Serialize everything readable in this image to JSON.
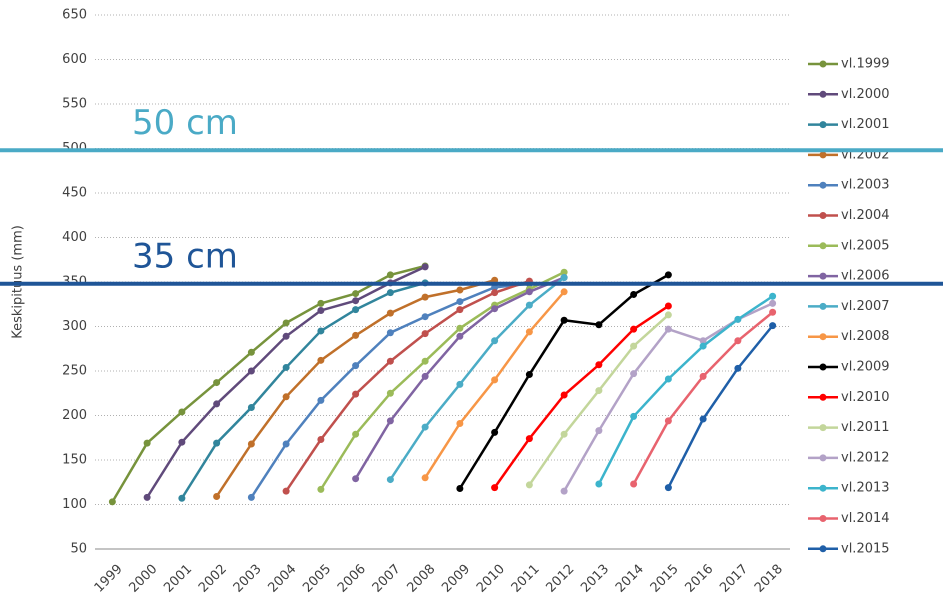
{
  "chart_data": {
    "type": "line",
    "y_label": "Keskipituus (mm)",
    "categories": [
      "1999",
      "2000",
      "2001",
      "2002",
      "2003",
      "2004",
      "2005",
      "2006",
      "2007",
      "2008",
      "2009",
      "2010",
      "2011",
      "2012",
      "2013",
      "2014",
      "2015",
      "2016",
      "2017",
      "2018"
    ],
    "ylim": [
      50,
      650
    ],
    "yticks": [
      50,
      100,
      150,
      200,
      250,
      300,
      350,
      400,
      450,
      500,
      550,
      600,
      650
    ],
    "grid": true,
    "legend": "right",
    "reference_lines": [
      {
        "label": "50 cm",
        "value": 498,
        "color": "#4aaac6"
      },
      {
        "label": "35 cm",
        "value": 348,
        "color": "#1f5597"
      }
    ],
    "series": [
      {
        "name": "vl.1999",
        "color": "#77933c",
        "values": [
          103,
          169,
          204,
          237,
          271,
          304,
          326,
          337,
          358,
          368,
          null,
          null,
          null,
          null,
          null,
          null,
          null,
          null,
          null,
          null
        ]
      },
      {
        "name": "vl.2000",
        "color": "#604a7b",
        "values": [
          null,
          108,
          170,
          213,
          250,
          289,
          318,
          329,
          349,
          367,
          null,
          null,
          null,
          null,
          null,
          null,
          null,
          null,
          null,
          null
        ]
      },
      {
        "name": "vl.2001",
        "color": "#31859c",
        "values": [
          null,
          null,
          107,
          169,
          209,
          254,
          295,
          319,
          338,
          349,
          null,
          null,
          null,
          null,
          null,
          null,
          null,
          null,
          null,
          null
        ]
      },
      {
        "name": "vl.2002",
        "color": "#c0702a",
        "values": [
          null,
          null,
          null,
          109,
          168,
          221,
          262,
          290,
          315,
          333,
          341,
          352,
          null,
          null,
          null,
          null,
          null,
          null,
          null,
          null
        ]
      },
      {
        "name": "vl.2003",
        "color": "#4f81bd",
        "values": [
          null,
          null,
          null,
          null,
          108,
          168,
          217,
          256,
          293,
          311,
          328,
          344,
          348,
          null,
          null,
          null,
          null,
          null,
          null,
          null
        ]
      },
      {
        "name": "vl.2004",
        "color": "#c0504d",
        "values": [
          null,
          null,
          null,
          null,
          null,
          115,
          173,
          224,
          261,
          292,
          319,
          338,
          351,
          null,
          null,
          null,
          null,
          null,
          null,
          null
        ]
      },
      {
        "name": "vl.2005",
        "color": "#9bbb59",
        "values": [
          null,
          null,
          null,
          null,
          null,
          null,
          117,
          179,
          225,
          261,
          298,
          324,
          342,
          361,
          null,
          null,
          null,
          null,
          null,
          null
        ]
      },
      {
        "name": "vl.2006",
        "color": "#8064a2",
        "values": [
          null,
          null,
          null,
          null,
          null,
          null,
          null,
          129,
          194,
          244,
          289,
          320,
          339,
          355,
          null,
          null,
          null,
          null,
          null,
          null
        ]
      },
      {
        "name": "vl.2007",
        "color": "#4bacc6",
        "values": [
          null,
          null,
          null,
          null,
          null,
          null,
          null,
          null,
          128,
          187,
          235,
          284,
          324,
          355,
          null,
          null,
          null,
          null,
          null,
          null
        ]
      },
      {
        "name": "vl.2008",
        "color": "#f79646",
        "values": [
          null,
          null,
          null,
          null,
          null,
          null,
          null,
          null,
          null,
          130,
          191,
          240,
          294,
          339,
          null,
          null,
          null,
          null,
          null,
          null
        ]
      },
      {
        "name": "vl.2009",
        "color": "#000000",
        "values": [
          null,
          null,
          null,
          null,
          null,
          null,
          null,
          null,
          null,
          null,
          118,
          181,
          246,
          307,
          302,
          336,
          358,
          null,
          null,
          null
        ]
      },
      {
        "name": "vl.2010",
        "color": "#ff0000",
        "values": [
          null,
          null,
          null,
          null,
          null,
          null,
          null,
          null,
          null,
          null,
          null,
          119,
          174,
          223,
          257,
          297,
          323,
          null,
          null,
          null
        ]
      },
      {
        "name": "vl.2011",
        "color": "#c3d69b",
        "values": [
          null,
          null,
          null,
          null,
          null,
          null,
          null,
          null,
          null,
          null,
          null,
          null,
          122,
          179,
          228,
          278,
          313,
          null,
          null,
          null
        ]
      },
      {
        "name": "vl.2012",
        "color": "#b3a2c7",
        "values": [
          null,
          null,
          null,
          null,
          null,
          null,
          null,
          null,
          null,
          null,
          null,
          null,
          null,
          115,
          183,
          247,
          297,
          284,
          308,
          326
        ]
      },
      {
        "name": "vl.2013",
        "color": "#3cb4cc",
        "values": [
          null,
          null,
          null,
          null,
          null,
          null,
          null,
          null,
          null,
          null,
          null,
          null,
          null,
          null,
          123,
          199,
          241,
          278,
          308,
          334
        ]
      },
      {
        "name": "vl.2014",
        "color": "#e8636e",
        "values": [
          null,
          null,
          null,
          null,
          null,
          null,
          null,
          null,
          null,
          null,
          null,
          null,
          null,
          null,
          null,
          123,
          194,
          244,
          284,
          316
        ]
      },
      {
        "name": "vl.2015",
        "color": "#1f5fa8",
        "values": [
          null,
          null,
          null,
          null,
          null,
          null,
          null,
          null,
          null,
          null,
          null,
          null,
          null,
          null,
          null,
          null,
          119,
          196,
          253,
          301
        ]
      }
    ]
  }
}
